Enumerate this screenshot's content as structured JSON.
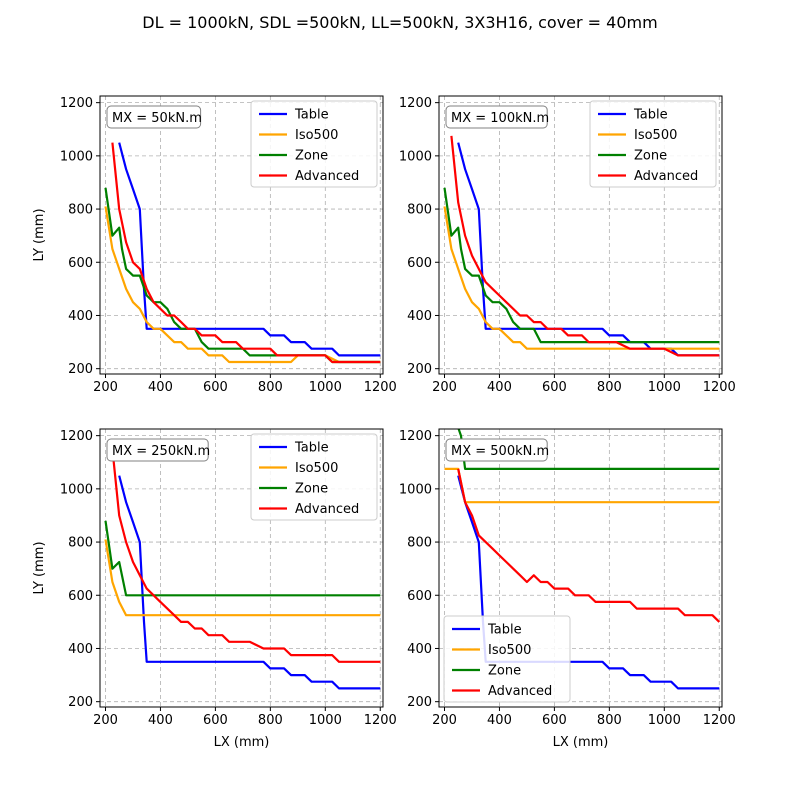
{
  "figure": {
    "suptitle": "DL = 1000kN, SDL =500kN, LL=500kN, 3X3H16, cover = 40mm",
    "series_colors": {
      "Table": "#0000ff",
      "Iso500": "#ffa500",
      "Zone": "#008000",
      "Advanced": "#ff0000"
    },
    "grid": true
  },
  "chart_data": [
    {
      "type": "line",
      "annotation": "MX = 50kN.m",
      "xlabel": "",
      "ylabel": "LY (mm)",
      "xlim": [
        180,
        1210
      ],
      "ylim": [
        180,
        1225
      ],
      "xticks": [
        200,
        400,
        600,
        800,
        1000,
        1200
      ],
      "yticks": [
        200,
        400,
        600,
        800,
        1000,
        1200
      ],
      "legend_position": "upper right",
      "series": [
        {
          "name": "Table",
          "x": [
            250,
            275,
            300,
            325,
            340,
            350,
            400,
            450,
            500,
            550,
            600,
            650,
            700,
            750,
            775,
            800,
            850,
            875,
            925,
            950,
            1025,
            1050,
            1200
          ],
          "y": [
            1050,
            950,
            875,
            800,
            500,
            350,
            350,
            350,
            350,
            350,
            350,
            350,
            350,
            350,
            350,
            325,
            325,
            300,
            300,
            275,
            275,
            250,
            250
          ]
        },
        {
          "name": "Iso500",
          "x": [
            200,
            225,
            250,
            275,
            300,
            325,
            350,
            375,
            400,
            425,
            450,
            475,
            500,
            525,
            550,
            575,
            600,
            625,
            650,
            700,
            750,
            800,
            850,
            875,
            900,
            950,
            1000,
            1050,
            1100,
            1200
          ],
          "y": [
            810,
            650,
            575,
            500,
            450,
            425,
            375,
            350,
            350,
            325,
            300,
            300,
            275,
            275,
            275,
            250,
            250,
            250,
            225,
            225,
            225,
            225,
            225,
            225,
            250,
            250,
            250,
            225,
            225,
            225
          ]
        },
        {
          "name": "Zone",
          "x": [
            200,
            225,
            250,
            260,
            275,
            300,
            325,
            350,
            375,
            400,
            425,
            450,
            475,
            500,
            525,
            550,
            575,
            600,
            625,
            650,
            700,
            725,
            750,
            800,
            850,
            900,
            950,
            1000,
            1025,
            1050,
            1100,
            1200
          ],
          "y": [
            880,
            700,
            730,
            650,
            575,
            550,
            550,
            475,
            450,
            450,
            425,
            375,
            350,
            350,
            350,
            300,
            275,
            275,
            275,
            275,
            275,
            250,
            250,
            250,
            250,
            250,
            250,
            250,
            225,
            225,
            225,
            225
          ]
        },
        {
          "name": "Advanced",
          "x": [
            225,
            250,
            275,
            300,
            325,
            350,
            375,
            400,
            425,
            450,
            475,
            500,
            525,
            550,
            575,
            600,
            625,
            650,
            675,
            700,
            725,
            775,
            800,
            825,
            850,
            900,
            950,
            1000,
            1025,
            1050,
            1100,
            1200
          ],
          "y": [
            1050,
            800,
            675,
            600,
            575,
            500,
            450,
            425,
            400,
            400,
            375,
            350,
            350,
            325,
            325,
            325,
            300,
            300,
            300,
            275,
            275,
            275,
            275,
            250,
            250,
            250,
            250,
            250,
            225,
            225,
            225,
            225
          ]
        }
      ]
    },
    {
      "type": "line",
      "annotation": "MX = 100kN.m",
      "xlabel": "",
      "ylabel": "",
      "xlim": [
        180,
        1210
      ],
      "ylim": [
        180,
        1225
      ],
      "xticks": [
        200,
        400,
        600,
        800,
        1000,
        1200
      ],
      "yticks": [
        200,
        400,
        600,
        800,
        1000,
        1200
      ],
      "legend_position": "upper right",
      "series": [
        {
          "name": "Table",
          "x": [
            250,
            275,
            300,
            325,
            340,
            350,
            400,
            450,
            500,
            550,
            600,
            650,
            700,
            750,
            775,
            800,
            850,
            875,
            925,
            950,
            1025,
            1050,
            1200
          ],
          "y": [
            1050,
            950,
            875,
            800,
            500,
            350,
            350,
            350,
            350,
            350,
            350,
            350,
            350,
            350,
            350,
            325,
            325,
            300,
            300,
            275,
            275,
            250,
            250
          ]
        },
        {
          "name": "Iso500",
          "x": [
            200,
            225,
            250,
            275,
            300,
            325,
            350,
            375,
            400,
            425,
            450,
            475,
            500,
            1200
          ],
          "y": [
            810,
            650,
            575,
            500,
            450,
            425,
            375,
            350,
            350,
            325,
            300,
            300,
            275,
            275
          ]
        },
        {
          "name": "Zone",
          "x": [
            200,
            225,
            250,
            260,
            275,
            300,
            325,
            350,
            375,
            400,
            425,
            450,
            475,
            500,
            525,
            550,
            1200
          ],
          "y": [
            880,
            700,
            730,
            650,
            575,
            550,
            550,
            475,
            450,
            450,
            425,
            375,
            350,
            350,
            350,
            300,
            300
          ]
        },
        {
          "name": "Advanced",
          "x": [
            225,
            250,
            275,
            300,
            325,
            350,
            375,
            400,
            425,
            450,
            475,
            500,
            525,
            550,
            575,
            625,
            650,
            700,
            725,
            800,
            825,
            875,
            925,
            975,
            1000,
            1050,
            1200
          ],
          "y": [
            1075,
            825,
            700,
            625,
            575,
            525,
            500,
            475,
            450,
            425,
            400,
            400,
            375,
            375,
            350,
            350,
            325,
            325,
            300,
            300,
            300,
            275,
            275,
            275,
            275,
            250,
            250
          ]
        }
      ]
    },
    {
      "type": "line",
      "annotation": "MX = 250kN.m",
      "xlabel": "LX (mm)",
      "ylabel": "LY (mm)",
      "xlim": [
        180,
        1210
      ],
      "ylim": [
        180,
        1225
      ],
      "xticks": [
        200,
        400,
        600,
        800,
        1000,
        1200
      ],
      "yticks": [
        200,
        400,
        600,
        800,
        1000,
        1200
      ],
      "legend_position": "upper right",
      "series": [
        {
          "name": "Table",
          "x": [
            250,
            275,
            300,
            325,
            340,
            350,
            400,
            450,
            500,
            550,
            600,
            650,
            700,
            750,
            775,
            800,
            850,
            875,
            925,
            950,
            1025,
            1050,
            1200
          ],
          "y": [
            1050,
            950,
            875,
            800,
            500,
            350,
            350,
            350,
            350,
            350,
            350,
            350,
            350,
            350,
            350,
            325,
            325,
            300,
            300,
            275,
            275,
            250,
            250
          ]
        },
        {
          "name": "Iso500",
          "x": [
            200,
            225,
            250,
            275,
            300,
            1200
          ],
          "y": [
            810,
            650,
            575,
            525,
            525,
            525
          ]
        },
        {
          "name": "Zone",
          "x": [
            200,
            225,
            250,
            275,
            1200
          ],
          "y": [
            880,
            700,
            725,
            600,
            600
          ]
        },
        {
          "name": "Advanced",
          "x": [
            225,
            250,
            275,
            300,
            325,
            350,
            375,
            400,
            425,
            450,
            475,
            500,
            525,
            550,
            575,
            600,
            625,
            650,
            700,
            725,
            775,
            800,
            850,
            875,
            1000,
            1025,
            1050,
            1200
          ],
          "y": [
            1150,
            900,
            800,
            725,
            675,
            625,
            600,
            575,
            550,
            525,
            500,
            500,
            475,
            475,
            450,
            450,
            450,
            425,
            425,
            425,
            400,
            400,
            400,
            375,
            375,
            375,
            350,
            350
          ]
        }
      ]
    },
    {
      "type": "line",
      "annotation": "MX = 500kN.m",
      "xlabel": "LX (mm)",
      "ylabel": "",
      "xlim": [
        180,
        1210
      ],
      "ylim": [
        180,
        1225
      ],
      "xticks": [
        200,
        400,
        600,
        800,
        1000,
        1200
      ],
      "yticks": [
        200,
        400,
        600,
        800,
        1000,
        1200
      ],
      "legend_position": "lower left",
      "series": [
        {
          "name": "Table",
          "x": [
            250,
            275,
            300,
            325,
            340,
            350,
            400,
            450,
            500,
            550,
            600,
            650,
            700,
            750,
            775,
            800,
            850,
            875,
            925,
            950,
            1025,
            1050,
            1200
          ],
          "y": [
            1050,
            950,
            875,
            800,
            500,
            350,
            350,
            350,
            350,
            350,
            350,
            350,
            350,
            350,
            350,
            325,
            325,
            300,
            300,
            275,
            275,
            250,
            250
          ]
        },
        {
          "name": "Iso500",
          "x": [
            200,
            250,
            275,
            1200
          ],
          "y": [
            1075,
            1075,
            950,
            950
          ]
        },
        {
          "name": "Zone",
          "x": [
            250,
            260,
            275,
            1200
          ],
          "y": [
            1230,
            1200,
            1075,
            1075
          ]
        },
        {
          "name": "Advanced",
          "x": [
            250,
            275,
            300,
            325,
            350,
            375,
            400,
            425,
            450,
            475,
            500,
            525,
            550,
            575,
            600,
            650,
            675,
            725,
            750,
            800,
            850,
            875,
            900,
            950,
            1000,
            1025,
            1050,
            1075,
            1100,
            1150,
            1175,
            1200
          ],
          "y": [
            1075,
            950,
            900,
            825,
            800,
            775,
            750,
            725,
            700,
            675,
            650,
            675,
            650,
            650,
            625,
            625,
            600,
            600,
            575,
            575,
            575,
            575,
            550,
            550,
            550,
            550,
            550,
            525,
            525,
            525,
            525,
            500
          ]
        }
      ]
    }
  ]
}
